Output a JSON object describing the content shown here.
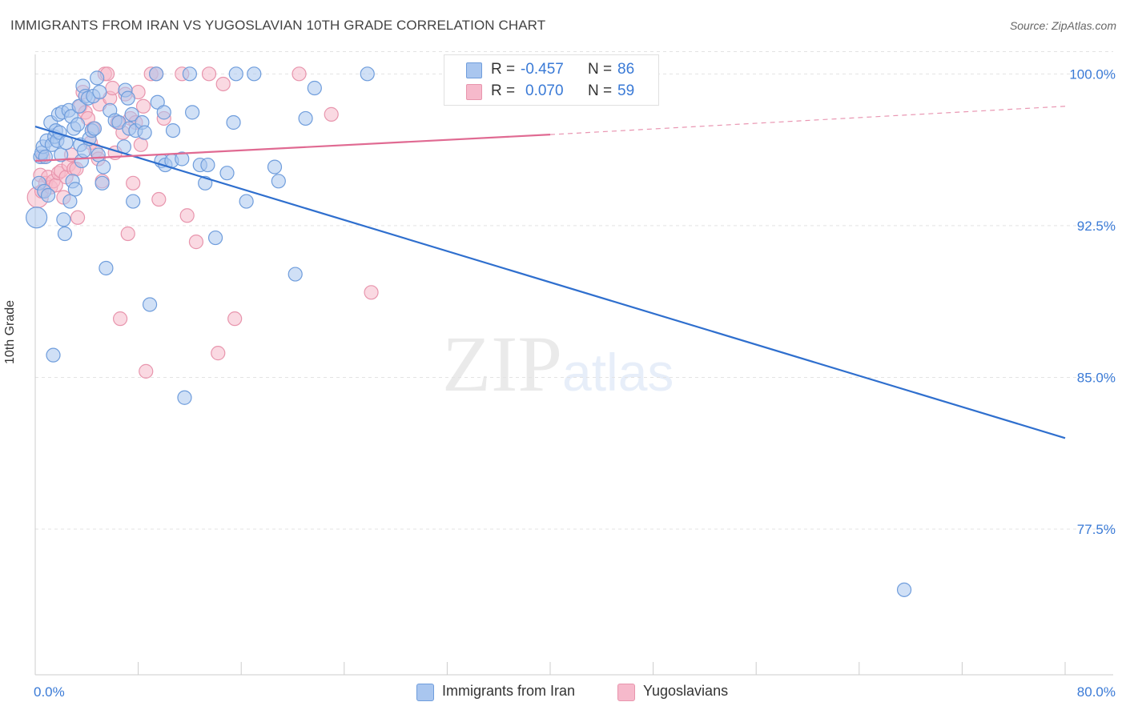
{
  "title": "IMMIGRANTS FROM IRAN VS YUGOSLAVIAN 10TH GRADE CORRELATION CHART",
  "source": "Source: ZipAtlas.com",
  "watermark": {
    "zip": "ZIP",
    "atlas": "atlas"
  },
  "legend_box": {
    "rows": [
      {
        "r_label": "R =",
        "r_value": "-0.457",
        "n_label": "N =",
        "n_value": "86"
      },
      {
        "r_label": "R =",
        "r_value": "0.070",
        "n_label": "N =",
        "n_value": "59"
      }
    ]
  },
  "bottom_legend": [
    "Immigrants from Iran",
    "Yugoslavians"
  ],
  "colors": {
    "iran_fill": "#a9c6ef",
    "iran_stroke": "#6f9ddc",
    "iran_line": "#2f6fce",
    "yugo_fill": "#f6b9cb",
    "yugo_stroke": "#e895ad",
    "yugo_line": "#e06a92",
    "tick_label": "#3a7ad6",
    "grid": "#e3e3e3"
  },
  "chart_data": {
    "type": "scatter",
    "title": "IMMIGRANTS FROM IRAN VS YUGOSLAVIAN 10TH GRADE CORRELATION CHART",
    "xlabel": "",
    "ylabel": "10th Grade",
    "xlim": [
      0,
      80
    ],
    "ylim": [
      70.3,
      101.2
    ],
    "x_tick_labels": [
      {
        "value": 0,
        "label": "0.0%"
      },
      {
        "value": 80,
        "label": "80.0%"
      }
    ],
    "y_ticks": [
      {
        "value": 100.0,
        "label": "100.0%"
      },
      {
        "value": 92.5,
        "label": "92.5%"
      },
      {
        "value": 85.0,
        "label": "85.0%"
      },
      {
        "value": 77.5,
        "label": "77.5%"
      }
    ],
    "grid": "horizontal dashed",
    "legend_placement": "bottom-center",
    "series": [
      {
        "name": "Immigrants from Iran",
        "r": -0.457,
        "n": 86,
        "trend": {
          "x": [
            0,
            80
          ],
          "y": [
            97.4,
            82.0
          ]
        },
        "points": [
          [
            0.1,
            92.9
          ],
          [
            0.3,
            94.6
          ],
          [
            0.4,
            95.9
          ],
          [
            0.5,
            96.1
          ],
          [
            0.6,
            96.4
          ],
          [
            0.7,
            94.2
          ],
          [
            0.8,
            95.9
          ],
          [
            0.9,
            96.7
          ],
          [
            1.0,
            94.0
          ],
          [
            1.2,
            97.6
          ],
          [
            1.3,
            96.5
          ],
          [
            1.4,
            86.1
          ],
          [
            1.5,
            96.9
          ],
          [
            1.6,
            97.2
          ],
          [
            1.7,
            96.7
          ],
          [
            1.8,
            98.0
          ],
          [
            1.9,
            97.1
          ],
          [
            2.0,
            96.0
          ],
          [
            2.1,
            98.1
          ],
          [
            2.2,
            92.8
          ],
          [
            2.3,
            92.1
          ],
          [
            2.4,
            96.6
          ],
          [
            2.6,
            98.2
          ],
          [
            2.7,
            93.7
          ],
          [
            2.8,
            97.9
          ],
          [
            2.9,
            94.7
          ],
          [
            3.0,
            97.3
          ],
          [
            3.1,
            94.3
          ],
          [
            3.3,
            97.5
          ],
          [
            3.4,
            98.4
          ],
          [
            3.5,
            96.5
          ],
          [
            3.6,
            95.7
          ],
          [
            3.7,
            99.4
          ],
          [
            3.8,
            96.2
          ],
          [
            3.9,
            98.9
          ],
          [
            4.1,
            98.8
          ],
          [
            4.2,
            96.8
          ],
          [
            4.4,
            97.2
          ],
          [
            4.5,
            98.9
          ],
          [
            4.6,
            97.3
          ],
          [
            4.8,
            99.8
          ],
          [
            4.9,
            96.0
          ],
          [
            5.0,
            99.1
          ],
          [
            5.2,
            94.6
          ],
          [
            5.3,
            95.4
          ],
          [
            5.5,
            90.4
          ],
          [
            5.8,
            98.2
          ],
          [
            6.2,
            97.7
          ],
          [
            6.5,
            97.6
          ],
          [
            6.9,
            96.4
          ],
          [
            7.0,
            99.2
          ],
          [
            7.2,
            98.8
          ],
          [
            7.3,
            97.3
          ],
          [
            7.5,
            98.0
          ],
          [
            7.6,
            93.7
          ],
          [
            7.8,
            97.2
          ],
          [
            8.3,
            97.6
          ],
          [
            8.5,
            97.1
          ],
          [
            8.9,
            88.6
          ],
          [
            9.4,
            100.0
          ],
          [
            9.5,
            98.6
          ],
          [
            9.8,
            95.7
          ],
          [
            10.0,
            98.1
          ],
          [
            10.1,
            95.5
          ],
          [
            10.6,
            95.7
          ],
          [
            10.7,
            97.2
          ],
          [
            11.4,
            95.8
          ],
          [
            11.6,
            84.0
          ],
          [
            12.0,
            100.0
          ],
          [
            12.2,
            98.1
          ],
          [
            12.8,
            95.5
          ],
          [
            13.2,
            94.6
          ],
          [
            13.4,
            95.5
          ],
          [
            14.0,
            91.9
          ],
          [
            14.9,
            95.1
          ],
          [
            15.4,
            97.6
          ],
          [
            15.6,
            100.0
          ],
          [
            16.4,
            93.7
          ],
          [
            17.0,
            100.0
          ],
          [
            18.6,
            95.4
          ],
          [
            18.9,
            94.7
          ],
          [
            20.2,
            90.1
          ],
          [
            21.0,
            97.8
          ],
          [
            21.7,
            99.3
          ],
          [
            25.8,
            100.0
          ],
          [
            67.5,
            74.5
          ]
        ]
      },
      {
        "name": "Yugoslavians",
        "r": 0.07,
        "n": 59,
        "trend": {
          "x": [
            0,
            40
          ],
          "y": [
            95.7,
            97.0
          ]
        },
        "trend_extension": {
          "x": [
            40,
            80
          ],
          "y": [
            97.0,
            98.4
          ]
        },
        "points": [
          [
            0.2,
            93.9
          ],
          [
            0.4,
            95.0
          ],
          [
            0.5,
            94.2
          ],
          [
            0.6,
            95.9
          ],
          [
            0.8,
            94.6
          ],
          [
            1.0,
            94.9
          ],
          [
            1.2,
            94.4
          ],
          [
            1.4,
            94.7
          ],
          [
            1.6,
            94.5
          ],
          [
            1.8,
            95.1
          ],
          [
            2.0,
            95.2
          ],
          [
            2.2,
            93.9
          ],
          [
            2.4,
            94.9
          ],
          [
            2.6,
            95.5
          ],
          [
            2.8,
            96.0
          ],
          [
            3.0,
            95.3
          ],
          [
            3.2,
            95.3
          ],
          [
            3.3,
            92.9
          ],
          [
            3.5,
            98.4
          ],
          [
            3.7,
            99.1
          ],
          [
            3.9,
            98.1
          ],
          [
            4.1,
            97.8
          ],
          [
            4.3,
            96.6
          ],
          [
            4.5,
            97.3
          ],
          [
            4.7,
            96.2
          ],
          [
            4.9,
            95.8
          ],
          [
            5.0,
            98.5
          ],
          [
            5.2,
            94.7
          ],
          [
            5.4,
            100.0
          ],
          [
            5.6,
            100.0
          ],
          [
            5.8,
            98.8
          ],
          [
            6.0,
            99.3
          ],
          [
            6.2,
            96.1
          ],
          [
            6.4,
            97.6
          ],
          [
            6.6,
            87.9
          ],
          [
            6.8,
            97.1
          ],
          [
            7.0,
            99.0
          ],
          [
            7.2,
            92.1
          ],
          [
            7.4,
            97.8
          ],
          [
            7.6,
            94.6
          ],
          [
            7.8,
            97.6
          ],
          [
            8.0,
            99.1
          ],
          [
            8.2,
            96.5
          ],
          [
            8.4,
            98.4
          ],
          [
            8.6,
            85.3
          ],
          [
            9.0,
            100.0
          ],
          [
            9.4,
            100.0
          ],
          [
            9.6,
            93.8
          ],
          [
            10.0,
            97.8
          ],
          [
            11.4,
            100.0
          ],
          [
            11.8,
            93.0
          ],
          [
            12.5,
            91.7
          ],
          [
            13.5,
            100.0
          ],
          [
            14.2,
            86.2
          ],
          [
            14.6,
            99.5
          ],
          [
            15.5,
            87.9
          ],
          [
            20.5,
            100.0
          ],
          [
            23.0,
            98.0
          ],
          [
            26.1,
            89.2
          ]
        ]
      }
    ]
  }
}
